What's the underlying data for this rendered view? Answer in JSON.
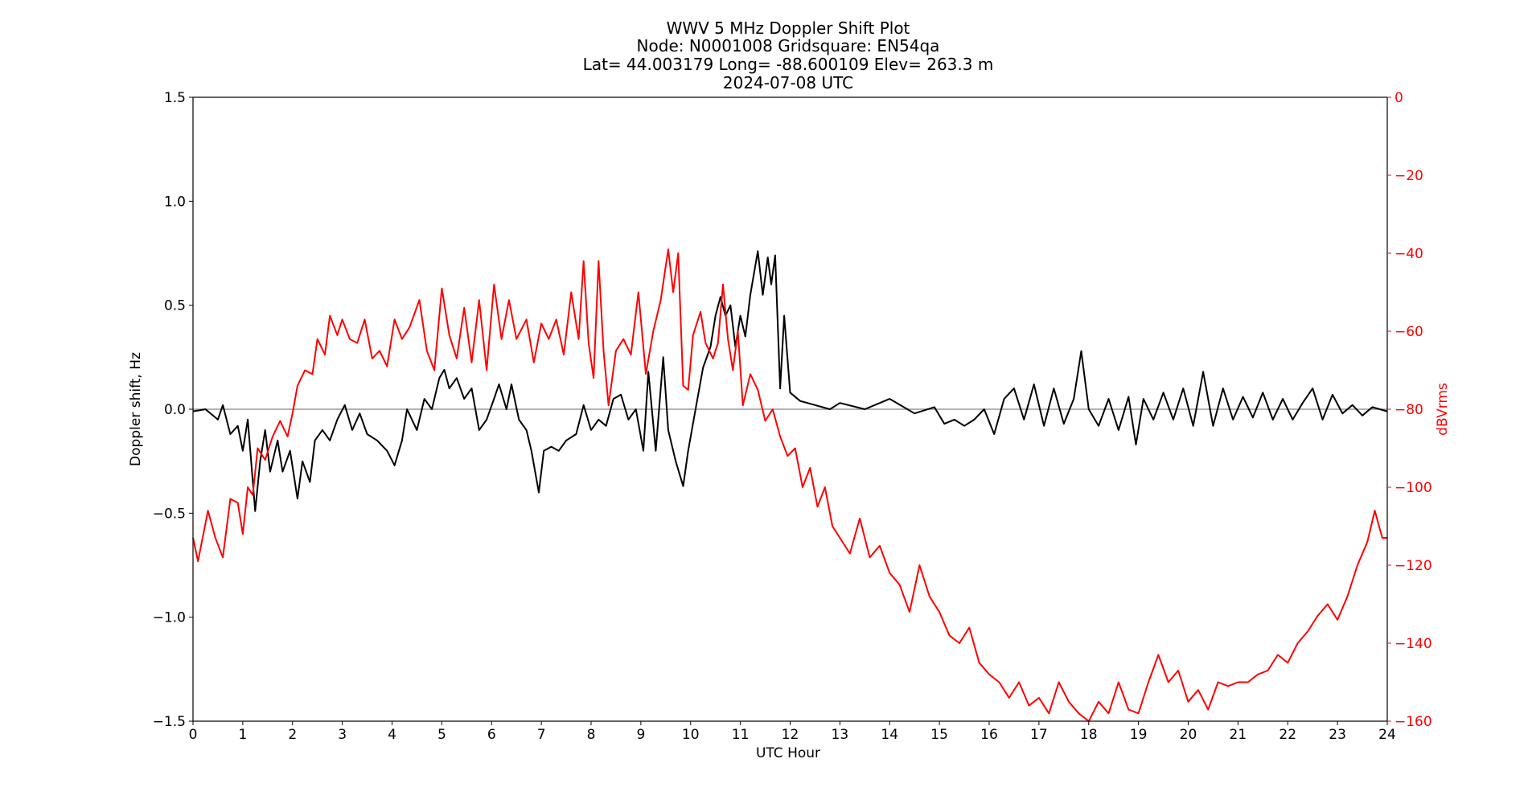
{
  "chart_data": {
    "type": "line",
    "title_lines": [
      "WWV 5 MHz Doppler Shift Plot",
      "Node:  N0001008     Gridsquare:  EN54qa",
      "Lat= 44.003179    Long= -88.600109    Elev= 263.3 m",
      "2024-07-08  UTC"
    ],
    "xlabel": "UTC Hour",
    "ylabel_left": "Doppler shift, Hz",
    "ylabel_right": "dBVrms",
    "xlim": [
      0,
      24
    ],
    "ylim_left": [
      -1.5,
      1.5
    ],
    "ylim_right": [
      -160,
      0
    ],
    "xticks": [
      0,
      1,
      2,
      3,
      4,
      5,
      6,
      7,
      8,
      9,
      10,
      11,
      12,
      13,
      14,
      15,
      16,
      17,
      18,
      19,
      20,
      21,
      22,
      23,
      24
    ],
    "yticks_left": [
      -1.5,
      -1.0,
      -0.5,
      0.0,
      0.5,
      1.0,
      1.5
    ],
    "yticks_left_labels": [
      "−1.5",
      "−1.0",
      "−0.5",
      "0.0",
      "0.5",
      "1.0",
      "1.5"
    ],
    "yticks_right": [
      -160,
      -140,
      -120,
      -100,
      -80,
      -60,
      -40,
      -20,
      0
    ],
    "yticks_right_labels": [
      "−160",
      "−140",
      "−120",
      "−100",
      "−80",
      "−60",
      "−40",
      "−20",
      "0"
    ],
    "reference_line": {
      "axis": "left",
      "y": 0.0,
      "color": "#999999"
    },
    "grid": false,
    "legend": "none",
    "series": [
      {
        "axis": "left",
        "color": "#000000",
        "points": [
          [
            0.0,
            -0.01
          ],
          [
            0.25,
            0.0
          ],
          [
            0.5,
            -0.05
          ],
          [
            0.6,
            0.02
          ],
          [
            0.75,
            -0.12
          ],
          [
            0.9,
            -0.08
          ],
          [
            1.0,
            -0.2
          ],
          [
            1.1,
            -0.05
          ],
          [
            1.25,
            -0.49
          ],
          [
            1.35,
            -0.25
          ],
          [
            1.45,
            -0.1
          ],
          [
            1.55,
            -0.3
          ],
          [
            1.7,
            -0.15
          ],
          [
            1.8,
            -0.3
          ],
          [
            1.95,
            -0.2
          ],
          [
            2.1,
            -0.43
          ],
          [
            2.2,
            -0.25
          ],
          [
            2.35,
            -0.35
          ],
          [
            2.45,
            -0.15
          ],
          [
            2.6,
            -0.1
          ],
          [
            2.75,
            -0.15
          ],
          [
            2.9,
            -0.05
          ],
          [
            3.05,
            0.02
          ],
          [
            3.2,
            -0.1
          ],
          [
            3.35,
            -0.02
          ],
          [
            3.5,
            -0.12
          ],
          [
            3.7,
            -0.15
          ],
          [
            3.9,
            -0.2
          ],
          [
            4.05,
            -0.27
          ],
          [
            4.2,
            -0.15
          ],
          [
            4.3,
            0.0
          ],
          [
            4.5,
            -0.1
          ],
          [
            4.65,
            0.05
          ],
          [
            4.8,
            0.0
          ],
          [
            4.95,
            0.15
          ],
          [
            5.05,
            0.19
          ],
          [
            5.15,
            0.1
          ],
          [
            5.3,
            0.15
          ],
          [
            5.45,
            0.05
          ],
          [
            5.6,
            0.1
          ],
          [
            5.75,
            -0.1
          ],
          [
            5.9,
            -0.05
          ],
          [
            6.05,
            0.05
          ],
          [
            6.15,
            0.12
          ],
          [
            6.3,
            0.0
          ],
          [
            6.4,
            0.12
          ],
          [
            6.55,
            -0.05
          ],
          [
            6.7,
            -0.1
          ],
          [
            6.8,
            -0.2
          ],
          [
            6.95,
            -0.4
          ],
          [
            7.05,
            -0.2
          ],
          [
            7.2,
            -0.18
          ],
          [
            7.35,
            -0.2
          ],
          [
            7.5,
            -0.15
          ],
          [
            7.7,
            -0.12
          ],
          [
            7.85,
            0.02
          ],
          [
            8.0,
            -0.1
          ],
          [
            8.15,
            -0.05
          ],
          [
            8.3,
            -0.08
          ],
          [
            8.45,
            0.05
          ],
          [
            8.6,
            0.07
          ],
          [
            8.75,
            -0.05
          ],
          [
            8.9,
            0.0
          ],
          [
            9.05,
            -0.2
          ],
          [
            9.15,
            0.18
          ],
          [
            9.3,
            -0.2
          ],
          [
            9.45,
            0.25
          ],
          [
            9.55,
            -0.1
          ],
          [
            9.7,
            -0.25
          ],
          [
            9.85,
            -0.37
          ],
          [
            9.95,
            -0.2
          ],
          [
            10.1,
            0.0
          ],
          [
            10.25,
            0.2
          ],
          [
            10.4,
            0.3
          ],
          [
            10.5,
            0.45
          ],
          [
            10.6,
            0.54
          ],
          [
            10.7,
            0.45
          ],
          [
            10.8,
            0.5
          ],
          [
            10.9,
            0.3
          ],
          [
            11.0,
            0.45
          ],
          [
            11.1,
            0.35
          ],
          [
            11.2,
            0.55
          ],
          [
            11.35,
            0.76
          ],
          [
            11.45,
            0.55
          ],
          [
            11.55,
            0.73
          ],
          [
            11.62,
            0.6
          ],
          [
            11.7,
            0.74
          ],
          [
            11.8,
            0.1
          ],
          [
            11.88,
            0.45
          ],
          [
            12.0,
            0.08
          ],
          [
            12.2,
            0.04
          ],
          [
            12.5,
            0.02
          ],
          [
            12.8,
            0.0
          ],
          [
            13.0,
            0.03
          ],
          [
            13.5,
            0.0
          ],
          [
            14.0,
            0.05
          ],
          [
            14.5,
            -0.02
          ],
          [
            14.9,
            0.01
          ],
          [
            15.1,
            -0.07
          ],
          [
            15.3,
            -0.05
          ],
          [
            15.5,
            -0.08
          ],
          [
            15.7,
            -0.05
          ],
          [
            15.9,
            0.0
          ],
          [
            16.1,
            -0.12
          ],
          [
            16.3,
            0.05
          ],
          [
            16.5,
            0.1
          ],
          [
            16.7,
            -0.05
          ],
          [
            16.9,
            0.12
          ],
          [
            17.1,
            -0.08
          ],
          [
            17.3,
            0.1
          ],
          [
            17.5,
            -0.07
          ],
          [
            17.7,
            0.05
          ],
          [
            17.85,
            0.28
          ],
          [
            18.0,
            0.0
          ],
          [
            18.2,
            -0.08
          ],
          [
            18.4,
            0.05
          ],
          [
            18.6,
            -0.1
          ],
          [
            18.8,
            0.06
          ],
          [
            18.95,
            -0.17
          ],
          [
            19.1,
            0.05
          ],
          [
            19.3,
            -0.05
          ],
          [
            19.5,
            0.08
          ],
          [
            19.7,
            -0.05
          ],
          [
            19.9,
            0.1
          ],
          [
            20.1,
            -0.08
          ],
          [
            20.3,
            0.18
          ],
          [
            20.5,
            -0.08
          ],
          [
            20.7,
            0.1
          ],
          [
            20.9,
            -0.05
          ],
          [
            21.1,
            0.06
          ],
          [
            21.3,
            -0.04
          ],
          [
            21.5,
            0.08
          ],
          [
            21.7,
            -0.05
          ],
          [
            21.9,
            0.05
          ],
          [
            22.1,
            -0.05
          ],
          [
            22.3,
            0.03
          ],
          [
            22.5,
            0.1
          ],
          [
            22.7,
            -0.05
          ],
          [
            22.9,
            0.07
          ],
          [
            23.1,
            -0.02
          ],
          [
            23.3,
            0.02
          ],
          [
            23.5,
            -0.03
          ],
          [
            23.7,
            0.01
          ],
          [
            24.0,
            -0.01
          ]
        ]
      },
      {
        "axis": "right",
        "color": "#ff0000",
        "points": [
          [
            0.0,
            -113
          ],
          [
            0.1,
            -119
          ],
          [
            0.3,
            -106
          ],
          [
            0.45,
            -113
          ],
          [
            0.6,
            -118
          ],
          [
            0.75,
            -103
          ],
          [
            0.9,
            -104
          ],
          [
            1.0,
            -112
          ],
          [
            1.1,
            -100
          ],
          [
            1.2,
            -102
          ],
          [
            1.3,
            -90
          ],
          [
            1.45,
            -93
          ],
          [
            1.6,
            -87
          ],
          [
            1.75,
            -83
          ],
          [
            1.9,
            -87
          ],
          [
            2.0,
            -81
          ],
          [
            2.1,
            -74
          ],
          [
            2.25,
            -70
          ],
          [
            2.4,
            -71
          ],
          [
            2.5,
            -62
          ],
          [
            2.65,
            -66
          ],
          [
            2.75,
            -56
          ],
          [
            2.9,
            -61
          ],
          [
            3.0,
            -57
          ],
          [
            3.15,
            -62
          ],
          [
            3.3,
            -63
          ],
          [
            3.45,
            -57
          ],
          [
            3.6,
            -67
          ],
          [
            3.75,
            -65
          ],
          [
            3.9,
            -69
          ],
          [
            4.05,
            -57
          ],
          [
            4.2,
            -62
          ],
          [
            4.35,
            -59
          ],
          [
            4.55,
            -52
          ],
          [
            4.7,
            -65
          ],
          [
            4.85,
            -70
          ],
          [
            5.0,
            -49
          ],
          [
            5.15,
            -61
          ],
          [
            5.3,
            -67
          ],
          [
            5.45,
            -54
          ],
          [
            5.6,
            -68
          ],
          [
            5.75,
            -52
          ],
          [
            5.9,
            -70
          ],
          [
            6.05,
            -48
          ],
          [
            6.2,
            -62
          ],
          [
            6.35,
            -52
          ],
          [
            6.5,
            -62
          ],
          [
            6.7,
            -57
          ],
          [
            6.85,
            -68
          ],
          [
            7.0,
            -58
          ],
          [
            7.15,
            -62
          ],
          [
            7.3,
            -57
          ],
          [
            7.45,
            -66
          ],
          [
            7.6,
            -50
          ],
          [
            7.75,
            -62
          ],
          [
            7.85,
            -42
          ],
          [
            7.95,
            -63
          ],
          [
            8.05,
            -72
          ],
          [
            8.15,
            -42
          ],
          [
            8.25,
            -65
          ],
          [
            8.35,
            -79
          ],
          [
            8.5,
            -65
          ],
          [
            8.65,
            -62
          ],
          [
            8.8,
            -66
          ],
          [
            8.95,
            -50
          ],
          [
            9.1,
            -71
          ],
          [
            9.25,
            -60
          ],
          [
            9.4,
            -52
          ],
          [
            9.55,
            -39
          ],
          [
            9.65,
            -50
          ],
          [
            9.75,
            -40
          ],
          [
            9.85,
            -74
          ],
          [
            9.95,
            -75
          ],
          [
            10.05,
            -61
          ],
          [
            10.2,
            -55
          ],
          [
            10.3,
            -63
          ],
          [
            10.45,
            -67
          ],
          [
            10.55,
            -63
          ],
          [
            10.65,
            -48
          ],
          [
            10.75,
            -62
          ],
          [
            10.85,
            -70
          ],
          [
            10.95,
            -60
          ],
          [
            11.05,
            -79
          ],
          [
            11.2,
            -71
          ],
          [
            11.35,
            -75
          ],
          [
            11.5,
            -83
          ],
          [
            11.65,
            -80
          ],
          [
            11.8,
            -87
          ],
          [
            11.95,
            -92
          ],
          [
            12.1,
            -90
          ],
          [
            12.25,
            -100
          ],
          [
            12.4,
            -95
          ],
          [
            12.55,
            -105
          ],
          [
            12.7,
            -100
          ],
          [
            12.85,
            -110
          ],
          [
            13.0,
            -113
          ],
          [
            13.2,
            -117
          ],
          [
            13.4,
            -108
          ],
          [
            13.6,
            -118
          ],
          [
            13.8,
            -115
          ],
          [
            14.0,
            -122
          ],
          [
            14.2,
            -125
          ],
          [
            14.4,
            -132
          ],
          [
            14.6,
            -120
          ],
          [
            14.8,
            -128
          ],
          [
            15.0,
            -132
          ],
          [
            15.2,
            -138
          ],
          [
            15.4,
            -140
          ],
          [
            15.6,
            -136
          ],
          [
            15.8,
            -145
          ],
          [
            16.0,
            -148
          ],
          [
            16.2,
            -150
          ],
          [
            16.4,
            -154
          ],
          [
            16.6,
            -150
          ],
          [
            16.8,
            -156
          ],
          [
            17.0,
            -154
          ],
          [
            17.2,
            -158
          ],
          [
            17.4,
            -150
          ],
          [
            17.6,
            -155
          ],
          [
            17.8,
            -158
          ],
          [
            18.0,
            -160
          ],
          [
            18.2,
            -155
          ],
          [
            18.4,
            -158
          ],
          [
            18.6,
            -150
          ],
          [
            18.8,
            -157
          ],
          [
            19.0,
            -158
          ],
          [
            19.2,
            -150
          ],
          [
            19.4,
            -143
          ],
          [
            19.6,
            -150
          ],
          [
            19.8,
            -147
          ],
          [
            20.0,
            -155
          ],
          [
            20.2,
            -152
          ],
          [
            20.4,
            -157
          ],
          [
            20.6,
            -150
          ],
          [
            20.8,
            -151
          ],
          [
            21.0,
            -150
          ],
          [
            21.2,
            -150
          ],
          [
            21.4,
            -148
          ],
          [
            21.6,
            -147
          ],
          [
            21.8,
            -143
          ],
          [
            22.0,
            -145
          ],
          [
            22.2,
            -140
          ],
          [
            22.4,
            -137
          ],
          [
            22.6,
            -133
          ],
          [
            22.8,
            -130
          ],
          [
            23.0,
            -134
          ],
          [
            23.2,
            -128
          ],
          [
            23.4,
            -120
          ],
          [
            23.6,
            -114
          ],
          [
            23.75,
            -106
          ],
          [
            23.9,
            -113
          ],
          [
            24.0,
            -113
          ]
        ]
      }
    ]
  }
}
